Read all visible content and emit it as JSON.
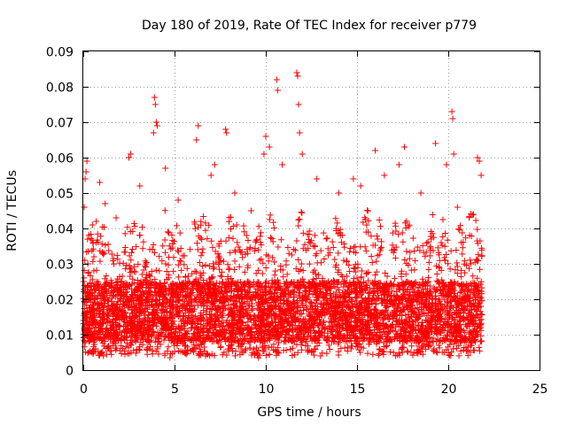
{
  "chart_data": {
    "type": "scatter",
    "title": "Day 180 of 2019, Rate Of TEC Index for receiver p779",
    "xlabel": "GPS time / hours",
    "ylabel": "ROTI / TECUs",
    "xlim": [
      0,
      25
    ],
    "ylim": [
      0,
      0.09
    ],
    "x_ticks": [
      0,
      5,
      10,
      15,
      20,
      25
    ],
    "x_tick_labels": [
      "0",
      "5",
      "10",
      "15",
      "20",
      "25"
    ],
    "y_ticks": [
      0,
      0.01,
      0.02,
      0.03,
      0.04,
      0.05,
      0.06,
      0.07,
      0.08,
      0.09
    ],
    "y_tick_labels": [
      "0",
      "0.01",
      "0.02",
      "0.03",
      "0.04",
      "0.05",
      "0.06",
      "0.07",
      "0.08",
      "0.09"
    ],
    "grid": true,
    "marker": "+",
    "color": "#ff0000",
    "series": [
      {
        "name": "ROTI",
        "points": [
          [
            0.05,
            0.046
          ],
          [
            0.1,
            0.054
          ],
          [
            0.15,
            0.056
          ],
          [
            0.2,
            0.059
          ],
          [
            0.08,
            0.031
          ],
          [
            0.25,
            0.03
          ],
          [
            0.5,
            0.041
          ],
          [
            0.9,
            0.053
          ],
          [
            1.2,
            0.047
          ],
          [
            1.8,
            0.043
          ],
          [
            2.6,
            0.061
          ],
          [
            2.5,
            0.06
          ],
          [
            3.1,
            0.052
          ],
          [
            3.9,
            0.077
          ],
          [
            3.95,
            0.075
          ],
          [
            4.0,
            0.07
          ],
          [
            4.05,
            0.069
          ],
          [
            3.85,
            0.067
          ],
          [
            4.5,
            0.057
          ],
          [
            5.2,
            0.048
          ],
          [
            6.3,
            0.069
          ],
          [
            6.2,
            0.065
          ],
          [
            7.0,
            0.055
          ],
          [
            7.2,
            0.058
          ],
          [
            7.8,
            0.068
          ],
          [
            7.85,
            0.067
          ],
          [
            8.3,
            0.05
          ],
          [
            9.2,
            0.045
          ],
          [
            9.9,
            0.061
          ],
          [
            10.0,
            0.066
          ],
          [
            10.2,
            0.063
          ],
          [
            10.6,
            0.082
          ],
          [
            10.65,
            0.079
          ],
          [
            10.9,
            0.058
          ],
          [
            11.7,
            0.084
          ],
          [
            11.75,
            0.083
          ],
          [
            11.8,
            0.075
          ],
          [
            11.85,
            0.067
          ],
          [
            12.0,
            0.061
          ],
          [
            12.8,
            0.054
          ],
          [
            14.0,
            0.05
          ],
          [
            14.8,
            0.054
          ],
          [
            15.2,
            0.052
          ],
          [
            16.0,
            0.062
          ],
          [
            16.5,
            0.055
          ],
          [
            17.3,
            0.058
          ],
          [
            17.6,
            0.063
          ],
          [
            18.5,
            0.05
          ],
          [
            19.3,
            0.064
          ],
          [
            19.9,
            0.058
          ],
          [
            20.2,
            0.073
          ],
          [
            20.25,
            0.071
          ],
          [
            20.3,
            0.061
          ],
          [
            20.5,
            0.046
          ],
          [
            21.6,
            0.06
          ],
          [
            21.7,
            0.059
          ],
          [
            21.8,
            0.055
          ],
          [
            9.6,
            0.0035
          ],
          [
            4.75,
            0.0035
          ],
          [
            6.7,
            0.004
          ],
          [
            17.0,
            0.005
          ],
          [
            13.0,
            0.004
          ]
        ],
        "dense_band": {
          "x_range": [
            0,
            21.85
          ],
          "y_range": [
            0.004,
            0.04
          ],
          "typical_range": [
            0.008,
            0.025
          ]
        }
      }
    ]
  }
}
